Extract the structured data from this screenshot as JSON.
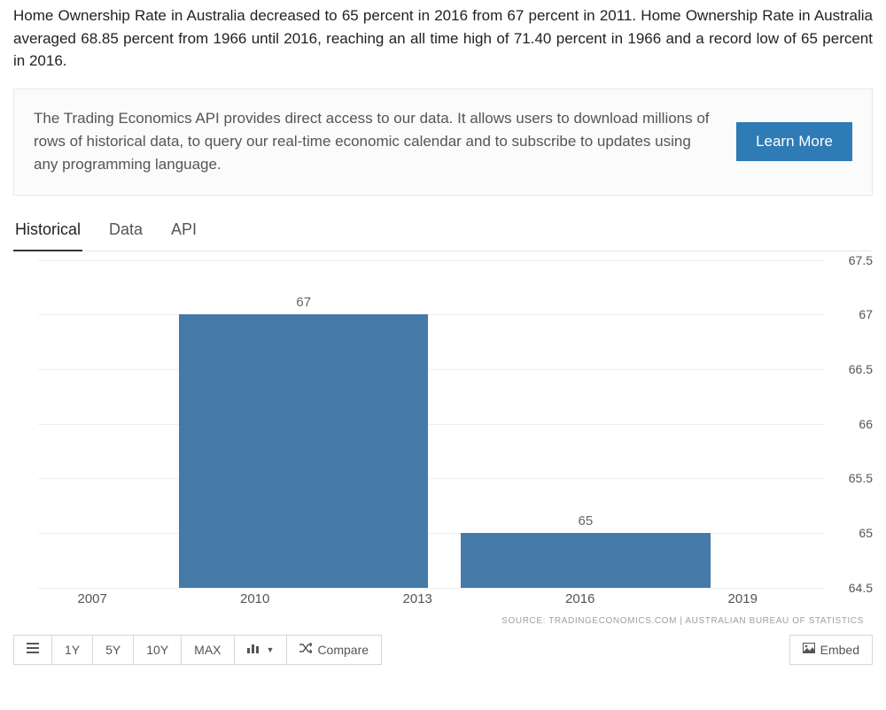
{
  "intro": "Home Ownership Rate in Australia decreased to 65 percent in 2016 from 67 percent in 2011. Home Ownership Rate in Australia averaged 68.85 percent from 1966 until 2016, reaching an all time high of 71.40 percent in 1966 and a record low of 65 percent in 2016.",
  "api_box": {
    "text": "The Trading Economics API provides direct access to our data. It allows users to download millions of rows of historical data, to query our real-time economic calendar and to subscribe to updates using any programming language.",
    "button": "Learn More",
    "button_bg": "#2e7bb5"
  },
  "tabs": [
    {
      "label": "Historical",
      "active": true
    },
    {
      "label": "Data",
      "active": false
    },
    {
      "label": "API",
      "active": false
    }
  ],
  "chart": {
    "type": "bar",
    "y_min": 64.5,
    "y_max": 67.5,
    "y_ticks": [
      64.5,
      65,
      65.5,
      66,
      66.5,
      67,
      67.5
    ],
    "x_ticks": [
      2007,
      2010,
      2013,
      2016,
      2019
    ],
    "x_min": 2006,
    "x_max": 2020.5,
    "bars": [
      {
        "x_start": 2008.6,
        "x_end": 2013.2,
        "value": 67,
        "label": "67"
      },
      {
        "x_start": 2013.8,
        "x_end": 2018.4,
        "value": 65,
        "label": "65"
      }
    ],
    "bar_color": "#457aa8",
    "grid_color": "#efefef",
    "background_color": "#ffffff",
    "tick_color": "#555555"
  },
  "source": "SOURCE: TRADINGECONOMICS.COM | AUSTRALIAN BUREAU OF STATISTICS",
  "toolbar": {
    "list_icon": "list-icon",
    "ranges": [
      "1Y",
      "5Y",
      "10Y",
      "MAX"
    ],
    "chart_type_icon": "bar-chart-icon",
    "compare": "Compare",
    "embed": "Embed"
  }
}
